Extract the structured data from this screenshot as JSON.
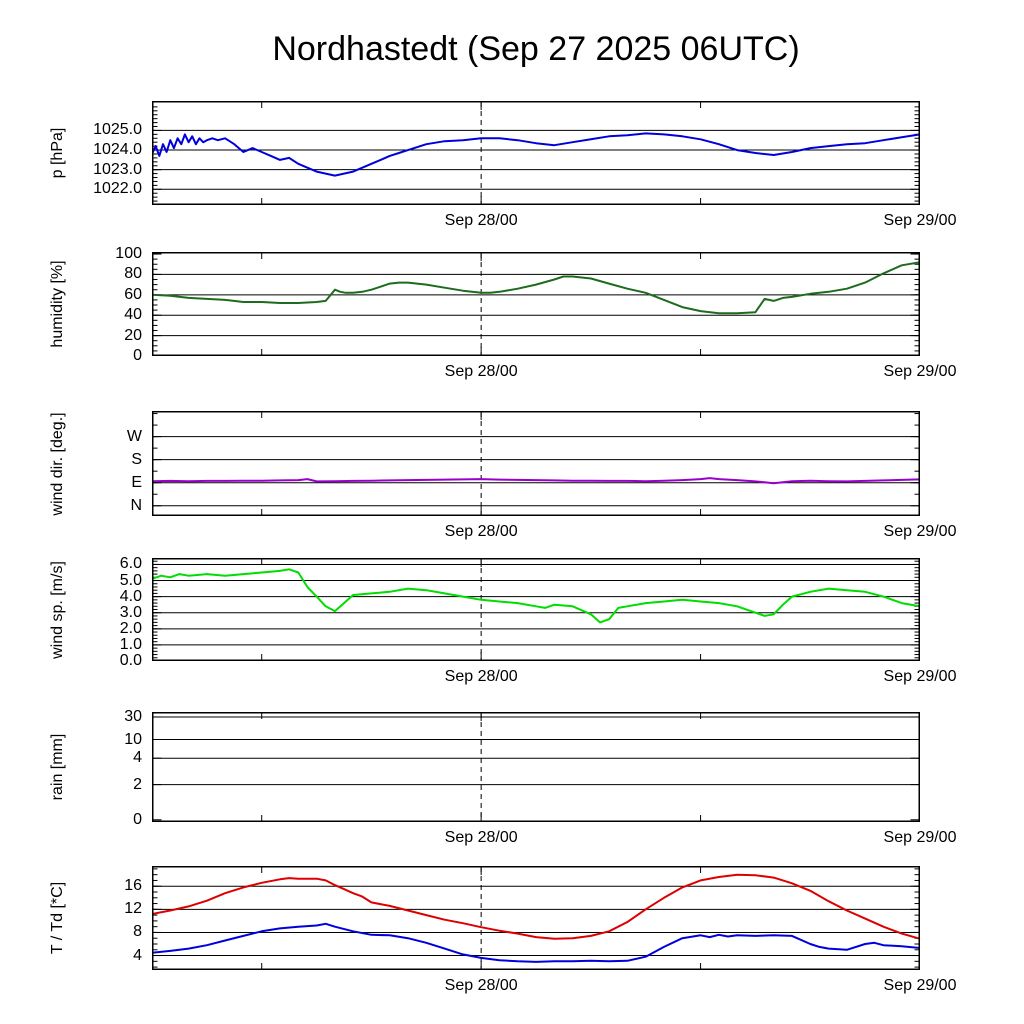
{
  "chart_data": {
    "type": "line",
    "title": "Nordhastedt (Sep 27 2025 06UTC)",
    "layout": {
      "grid": true,
      "legend": "none",
      "stacked_panels": 6,
      "now_line": "dashed vertical at Sep 28/00"
    },
    "x_axis": {
      "xlim": [
        0,
        42
      ],
      "unit": "hours since Sep 27 2025 06UTC",
      "ticks": [
        {
          "x": 18,
          "label": "Sep 28/00",
          "dashed": true
        },
        {
          "x": 42,
          "label": "Sep 29/00",
          "dashed": false
        }
      ],
      "minor_ticks": [
        6,
        30
      ]
    },
    "panels": [
      {
        "id": "pressure",
        "ylabel": "p [hPa]",
        "ylim": [
          1021.2,
          1026.5
        ],
        "minor_div": 5,
        "yticks": [
          {
            "v": 1022,
            "label": "1022.0"
          },
          {
            "v": 1023,
            "label": "1023.0"
          },
          {
            "v": 1024,
            "label": "1024.0"
          },
          {
            "v": 1025,
            "label": "1025.0"
          }
        ],
        "series": [
          {
            "name": "pressure",
            "color": "#0000dd",
            "x": [
              0,
              0.2,
              0.4,
              0.6,
              0.8,
              1,
              1.2,
              1.4,
              1.6,
              1.8,
              2,
              2.2,
              2.4,
              2.6,
              2.8,
              3,
              3.3,
              3.6,
              4,
              4.5,
              5,
              5.5,
              6,
              6.5,
              7,
              7.5,
              8,
              8.5,
              9,
              9.5,
              10,
              10.5,
              11,
              11.5,
              12,
              12.5,
              13,
              13.5,
              14,
              15,
              16,
              17,
              18,
              19,
              20,
              21,
              22,
              23,
              24,
              25,
              26,
              27,
              28,
              29,
              30,
              31,
              32,
              33,
              34,
              35,
              36,
              37,
              38,
              39,
              40,
              41,
              42
            ],
            "y": [
              1023.8,
              1024.2,
              1023.7,
              1024.3,
              1023.9,
              1024.5,
              1024.1,
              1024.6,
              1024.3,
              1024.8,
              1024.4,
              1024.7,
              1024.3,
              1024.6,
              1024.4,
              1024.5,
              1024.6,
              1024.5,
              1024.6,
              1024.3,
              1023.9,
              1024.1,
              1023.9,
              1023.7,
              1023.5,
              1023.6,
              1023.3,
              1023.1,
              1022.9,
              1022.8,
              1022.7,
              1022.8,
              1022.9,
              1023.1,
              1023.3,
              1023.5,
              1023.7,
              1023.85,
              1024.0,
              1024.3,
              1024.45,
              1024.5,
              1024.6,
              1024.6,
              1024.5,
              1024.35,
              1024.25,
              1024.4,
              1024.55,
              1024.7,
              1024.75,
              1024.85,
              1024.8,
              1024.7,
              1024.55,
              1024.3,
              1024.0,
              1023.85,
              1023.75,
              1023.9,
              1024.1,
              1024.2,
              1024.3,
              1024.35,
              1024.5,
              1024.65,
              1024.8
            ]
          }
        ]
      },
      {
        "id": "humidity",
        "ylabel": "humidity [%]",
        "ylim": [
          0,
          102
        ],
        "minor_div": 4,
        "yticks": [
          {
            "v": 0,
            "label": "0"
          },
          {
            "v": 20,
            "label": "20"
          },
          {
            "v": 40,
            "label": "40"
          },
          {
            "v": 60,
            "label": "60"
          },
          {
            "v": 80,
            "label": "80"
          },
          {
            "v": 100,
            "label": "100"
          }
        ],
        "series": [
          {
            "name": "humidity",
            "color": "#1e6b1e",
            "x": [
              0,
              1,
              2,
              3,
              4,
              5,
              6,
              7,
              8,
              9,
              9.5,
              10,
              10.3,
              10.6,
              11,
              11.5,
              12,
              12.5,
              13,
              13.5,
              14,
              14.5,
              15,
              16,
              17,
              18,
              18.5,
              19,
              20,
              21,
              22,
              22.5,
              23,
              24,
              25,
              26,
              27,
              28,
              29,
              30,
              31,
              32,
              33,
              33.5,
              34,
              34.5,
              35,
              36,
              37,
              38,
              39,
              40,
              41,
              42
            ],
            "y": [
              60,
              59,
              57,
              56,
              55,
              53,
              53,
              52,
              52,
              53,
              54,
              65,
              63,
              62,
              62,
              63,
              65,
              68,
              71,
              72,
              72,
              71,
              70,
              67,
              64,
              62,
              62,
              63,
              66,
              70,
              75,
              78,
              78,
              76,
              71,
              66,
              62,
              55,
              48,
              44,
              42,
              42,
              43,
              56,
              54,
              57,
              58,
              61,
              63,
              66,
              72,
              81,
              89,
              92
            ]
          }
        ]
      },
      {
        "id": "wind-direction",
        "ylabel": "wind dir. [deg.]",
        "ylim": [
          -40,
          370
        ],
        "minor_div": 2,
        "yticks": [
          {
            "v": 0,
            "label": "N"
          },
          {
            "v": 90,
            "label": "E"
          },
          {
            "v": 180,
            "label": "S"
          },
          {
            "v": 270,
            "label": "W"
          }
        ],
        "series": [
          {
            "name": "wind-direction",
            "color": "#9900cc",
            "x": [
              0,
              1,
              2,
              3,
              4,
              5,
              6,
              7,
              8,
              8.5,
              9,
              10,
              11,
              12,
              13,
              14,
              15,
              16,
              17,
              18,
              19,
              20,
              21,
              22,
              23,
              24,
              25,
              26,
              27,
              28,
              29,
              30,
              30.5,
              31,
              32,
              33,
              34,
              34.5,
              35,
              36,
              37,
              38,
              39,
              40,
              41,
              42
            ],
            "y": [
              96,
              97,
              96,
              97,
              97,
              98,
              98,
              99,
              100,
              104,
              95,
              96,
              97,
              98,
              99,
              100,
              101,
              102,
              103,
              104,
              102,
              101,
              100,
              99,
              98,
              98,
              97,
              97,
              96,
              98,
              100,
              104,
              108,
              104,
              100,
              95,
              88,
              92,
              96,
              98,
              96,
              95,
              97,
              99,
              101,
              103
            ]
          }
        ]
      },
      {
        "id": "wind-speed",
        "ylabel": "wind sp. [m/s]",
        "ylim": [
          0,
          6.4
        ],
        "minor_div": 5,
        "yticks": [
          {
            "v": 0,
            "label": "0.0"
          },
          {
            "v": 1,
            "label": "1.0"
          },
          {
            "v": 2,
            "label": "2.0"
          },
          {
            "v": 3,
            "label": "3.0"
          },
          {
            "v": 4,
            "label": "4.0"
          },
          {
            "v": 5,
            "label": "5.0"
          },
          {
            "v": 6,
            "label": "6.0"
          }
        ],
        "series": [
          {
            "name": "wind-speed",
            "color": "#00dd00",
            "x": [
              0,
              0.5,
              1,
              1.5,
              2,
              3,
              4,
              5,
              6,
              7,
              7.5,
              8,
              8.5,
              9,
              9.5,
              10,
              10.5,
              11,
              12,
              13,
              14,
              15,
              16,
              17,
              18,
              19,
              20,
              21,
              21.5,
              22,
              23,
              24,
              24.5,
              25,
              25.5,
              26,
              27,
              28,
              29,
              30,
              31,
              32,
              33,
              33.5,
              34,
              34.5,
              35,
              36,
              37,
              38,
              39,
              40,
              41,
              42
            ],
            "y": [
              5.1,
              5.3,
              5.2,
              5.4,
              5.3,
              5.4,
              5.3,
              5.4,
              5.5,
              5.6,
              5.7,
              5.5,
              4.6,
              4.0,
              3.4,
              3.1,
              3.6,
              4.1,
              4.2,
              4.3,
              4.5,
              4.4,
              4.2,
              4.0,
              3.8,
              3.7,
              3.6,
              3.4,
              3.3,
              3.5,
              3.4,
              2.9,
              2.4,
              2.6,
              3.3,
              3.4,
              3.6,
              3.7,
              3.8,
              3.7,
              3.6,
              3.4,
              3.0,
              2.8,
              2.9,
              3.5,
              4.0,
              4.3,
              4.5,
              4.4,
              4.3,
              4.0,
              3.6,
              3.4
            ]
          }
        ]
      },
      {
        "id": "rain",
        "ylabel": "rain [mm]",
        "ylim": [
          0,
          1
        ],
        "scale": "nonlinear",
        "minor_div": 0,
        "yticks": [
          {
            "v": 0.02,
            "label": "0"
          },
          {
            "v": 0.34,
            "label": "2"
          },
          {
            "v": 0.58,
            "label": "4"
          },
          {
            "v": 0.75,
            "label": "10"
          },
          {
            "v": 0.955,
            "label": "30"
          }
        ],
        "series": [
          {
            "name": "rain",
            "color": "#0000dd",
            "x": [],
            "y": []
          }
        ]
      },
      {
        "id": "temperature",
        "ylabel": "T / Td [*C]",
        "ylim": [
          1.5,
          19.5
        ],
        "minor_div": 4,
        "yticks": [
          {
            "v": 4,
            "label": "4"
          },
          {
            "v": 8,
            "label": "8"
          },
          {
            "v": 12,
            "label": "12"
          },
          {
            "v": 16,
            "label": "16"
          }
        ],
        "series": [
          {
            "name": "temperature",
            "color": "#dd0000",
            "x": [
              0,
              1,
              2,
              3,
              4,
              5,
              6,
              7,
              7.5,
              8,
              9,
              9.5,
              10,
              10.5,
              11,
              11.5,
              12,
              13,
              14,
              15,
              16,
              17,
              18,
              19,
              20,
              21,
              22,
              23,
              24,
              25,
              26,
              27,
              28,
              29,
              30,
              31,
              32,
              33,
              34,
              34.5,
              35,
              36,
              37,
              38,
              39,
              40,
              41,
              42
            ],
            "y": [
              11.2,
              11.8,
              12.5,
              13.5,
              14.8,
              15.8,
              16.6,
              17.2,
              17.4,
              17.3,
              17.3,
              17.0,
              16.2,
              15.5,
              14.8,
              14.2,
              13.2,
              12.6,
              11.8,
              11.0,
              10.2,
              9.6,
              8.9,
              8.3,
              7.8,
              7.2,
              6.9,
              7.0,
              7.4,
              8.2,
              9.8,
              12.0,
              14.0,
              15.8,
              17.0,
              17.6,
              18.0,
              17.9,
              17.5,
              17.0,
              16.5,
              15.2,
              13.4,
              11.8,
              10.4,
              9.0,
              7.8,
              6.9
            ]
          },
          {
            "name": "dewpoint",
            "color": "#0000dd",
            "x": [
              0,
              1,
              2,
              3,
              4,
              5,
              6,
              7,
              8,
              9,
              9.5,
              10,
              11,
              12,
              13,
              14,
              15,
              16,
              17,
              18,
              19,
              20,
              21,
              22,
              23,
              24,
              25,
              26,
              27,
              28,
              29,
              30,
              30.5,
              31,
              31.5,
              32,
              33,
              34,
              35,
              36,
              36.5,
              37,
              38,
              39,
              39.5,
              40,
              41,
              42
            ],
            "y": [
              4.5,
              4.8,
              5.2,
              5.8,
              6.6,
              7.4,
              8.2,
              8.7,
              9.0,
              9.2,
              9.5,
              9.0,
              8.2,
              7.6,
              7.5,
              7.0,
              6.2,
              5.2,
              4.2,
              3.6,
              3.2,
              3.0,
              2.9,
              3.0,
              3.0,
              3.1,
              3.0,
              3.1,
              3.8,
              5.5,
              7.0,
              7.5,
              7.2,
              7.6,
              7.3,
              7.5,
              7.4,
              7.5,
              7.4,
              6.0,
              5.5,
              5.2,
              5.0,
              6.0,
              6.2,
              5.8,
              5.6,
              5.3
            ]
          }
        ]
      }
    ]
  }
}
